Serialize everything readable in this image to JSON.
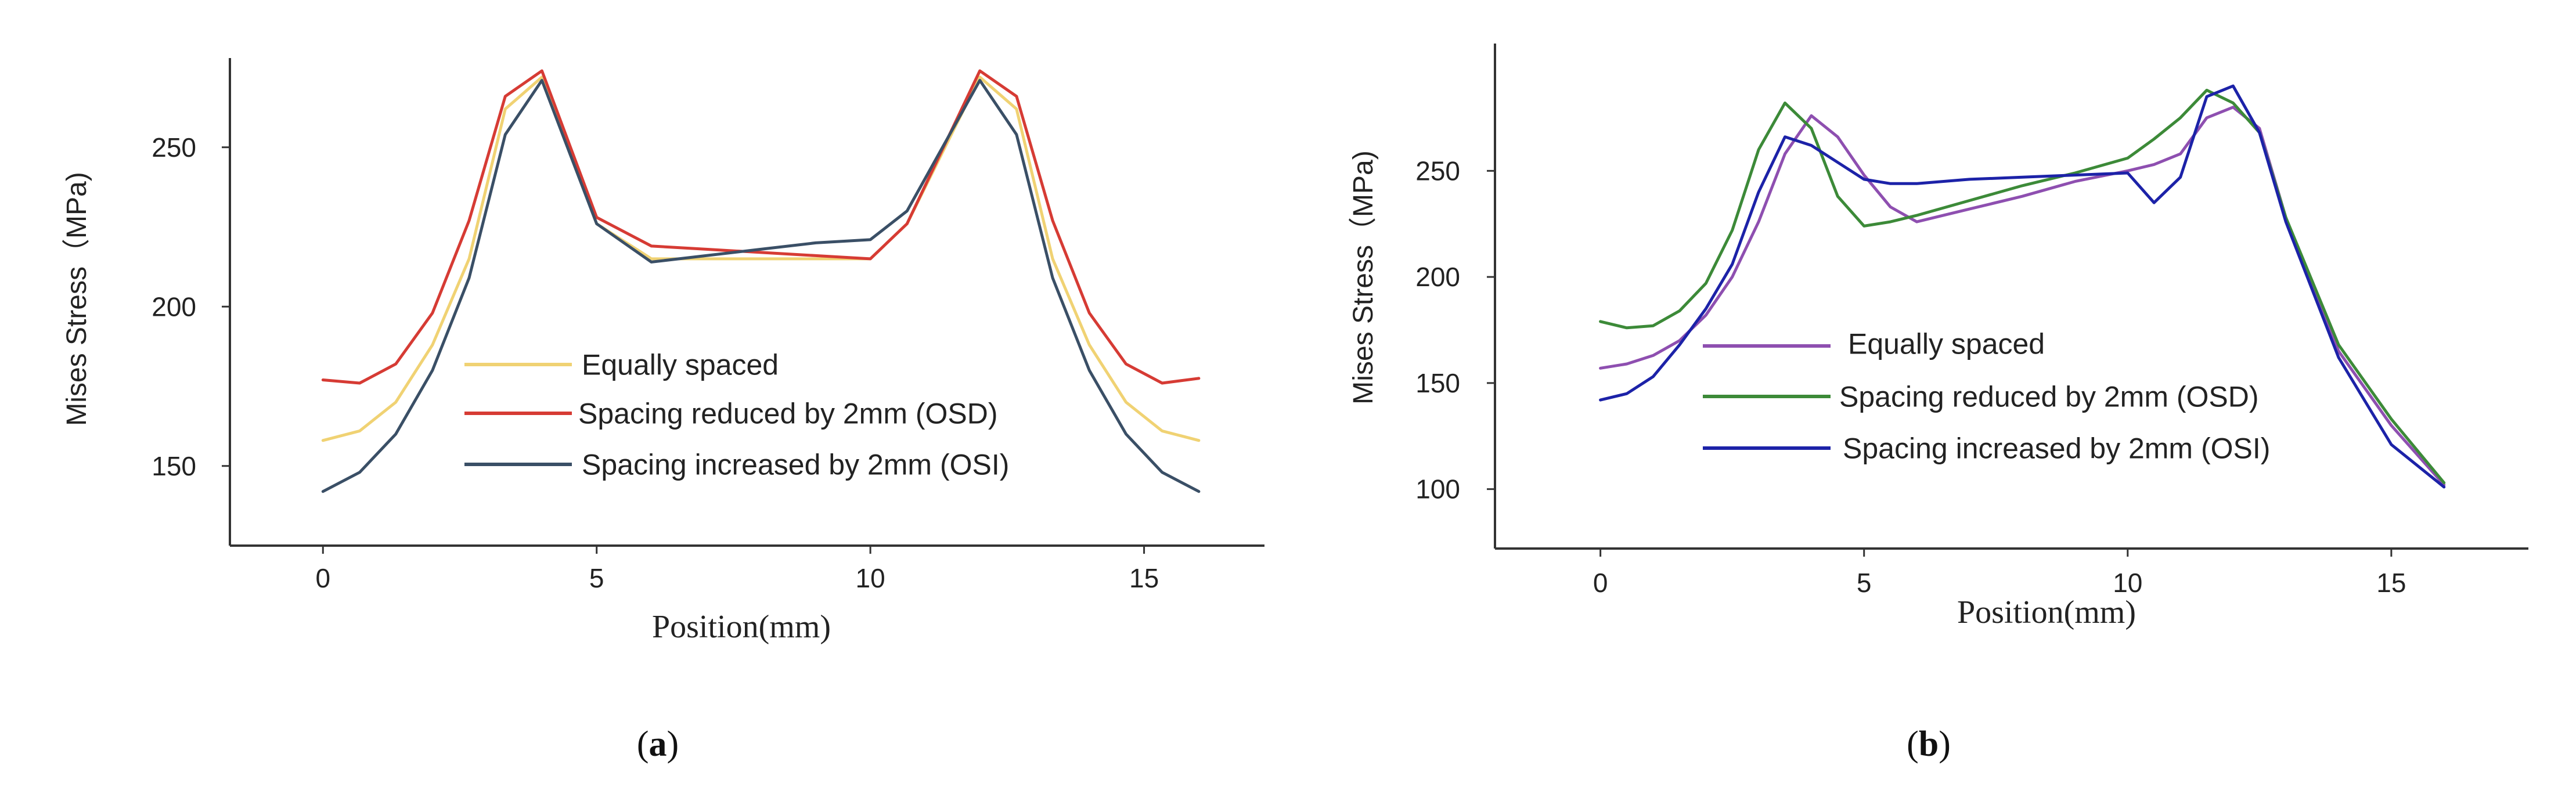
{
  "chart_data": [
    {
      "type": "line",
      "panel_label": "(a)",
      "panel_letter": "a",
      "xlabel": "Position(mm)",
      "ylabel": "Mises Stress（MPa)",
      "xlim": [
        -1.7,
        17.2
      ],
      "ylim": [
        125,
        278
      ],
      "xticks": [
        0,
        5,
        10,
        15
      ],
      "yticks": [
        150,
        200,
        250
      ],
      "legend_position": "center",
      "series": [
        {
          "name": "Equally spaced",
          "color": "#f0d273",
          "x": [
            0,
            0.67,
            1.33,
            2,
            2.67,
            3.33,
            4,
            5,
            6,
            7,
            8,
            9,
            10,
            10.67,
            12,
            12.67,
            13.33,
            14,
            14.67,
            15.33,
            16
          ],
          "y": [
            158,
            161,
            170,
            188,
            215,
            262,
            272,
            226,
            215,
            215,
            215,
            215,
            215,
            226,
            272,
            262,
            215,
            188,
            170,
            161,
            158
          ]
        },
        {
          "name": "Spacing reduced by 2mm (OSD)",
          "color": "#d63b34",
          "x": [
            0,
            0.67,
            1.33,
            2,
            2.67,
            3.33,
            4,
            5,
            6,
            7,
            8,
            9,
            10,
            10.67,
            12,
            12.67,
            13.33,
            14,
            14.67,
            15.33,
            16
          ],
          "y": [
            177,
            176,
            182,
            198,
            227,
            266,
            274,
            228,
            219,
            218,
            217,
            216,
            215,
            226,
            274,
            266,
            227,
            198,
            182,
            176,
            177.5
          ]
        },
        {
          "name": "Spacing increased by 2mm (OSI)",
          "color": "#3a4f66",
          "x": [
            0,
            0.67,
            1.33,
            2,
            2.67,
            3.33,
            4,
            5,
            6,
            7,
            8,
            9,
            10,
            10.67,
            12,
            12.67,
            13.33,
            14,
            14.67,
            15.33,
            16
          ],
          "y": [
            142,
            148,
            160,
            180,
            209,
            254,
            271,
            226,
            214,
            216,
            218,
            220,
            221,
            230,
            271,
            254,
            209,
            180,
            160,
            148,
            142
          ]
        }
      ]
    },
    {
      "type": "line",
      "panel_label": "(b)",
      "panel_letter": "b",
      "xlabel": "Position(mm)",
      "ylabel": "Mises Stress（MPa)",
      "xlim": [
        -2,
        17.6
      ],
      "ylim": [
        72,
        310
      ],
      "xticks": [
        0,
        5,
        10,
        15
      ],
      "yticks": [
        100,
        150,
        200,
        250
      ],
      "legend_position": "center-left",
      "series": [
        {
          "name": "Equally spaced",
          "color": "#8e4fb0",
          "x": [
            0,
            0.5,
            1,
            1.5,
            2,
            2.5,
            3,
            3.5,
            4,
            4.5,
            5,
            5.5,
            6,
            7,
            8,
            9,
            10,
            10.5,
            11,
            11.5,
            12,
            12.5,
            13,
            14,
            15,
            16
          ],
          "y": [
            157,
            159,
            163,
            170,
            182,
            200,
            226,
            258,
            276,
            266,
            248,
            233,
            226,
            232,
            238,
            245,
            250,
            253,
            258,
            275,
            280,
            270,
            228,
            165,
            130,
            102
          ]
        },
        {
          "name": "Spacing reduced by 2mm (OSD)",
          "color": "#3c8a38",
          "x": [
            0,
            0.5,
            1,
            1.5,
            2,
            2.5,
            3,
            3.5,
            4,
            4.5,
            5,
            5.5,
            6,
            7,
            8,
            9,
            10,
            10.5,
            11,
            11.5,
            12,
            12.5,
            13,
            14,
            15,
            16
          ],
          "y": [
            179,
            176,
            177,
            184,
            197,
            222,
            260,
            282,
            270,
            238,
            224,
            226,
            229,
            236,
            243,
            249,
            256,
            265,
            275,
            288,
            282,
            268,
            228,
            168,
            133,
            103
          ]
        },
        {
          "name": "Spacing increased by 2mm (OSI)",
          "color": "#1c22a8",
          "x": [
            0,
            0.5,
            1,
            1.5,
            2,
            2.5,
            3,
            3.5,
            4,
            4.5,
            5,
            5.5,
            6,
            7,
            8,
            9,
            10,
            10.5,
            11,
            11.5,
            12,
            12.5,
            13,
            14,
            15,
            16
          ],
          "y": [
            142,
            145,
            153,
            168,
            185,
            206,
            240,
            266,
            262,
            254,
            246,
            244,
            244,
            246,
            247,
            248,
            249,
            235,
            247,
            285,
            290,
            268,
            226,
            162,
            121,
            101
          ]
        }
      ]
    }
  ]
}
